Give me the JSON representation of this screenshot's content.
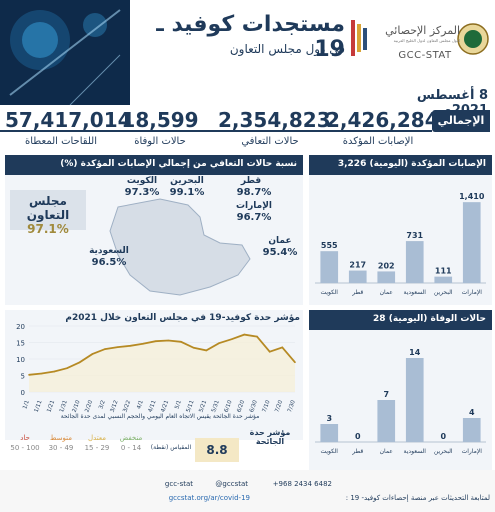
{
  "header": {
    "title": "مستجدات كوفيد ـ 19",
    "subtitle": "في دول مجلس التعاون",
    "org_name_ar": "المركز الإحصائي",
    "org_sub_ar": "لدول مجلس التعاون لدول الخليج العربية",
    "org_name_en": "GCC-STAT"
  },
  "date": "8 أغسطس 2021م",
  "totals": {
    "label": "الإجمالي",
    "items": [
      {
        "value": "2,426,284",
        "label": "الإصابات المؤكدة"
      },
      {
        "value": "2,354,823",
        "label": "حالات التعافي"
      },
      {
        "value": "18,599",
        "label": "حالات الوفاة"
      },
      {
        "value": "57,417,014",
        "label": "اللقاحات المعطاة"
      }
    ]
  },
  "map_panel": {
    "title": "نسبة حالات التعافي من إجمالي الإصابات المؤكدة (%)",
    "gcc_label": "مجلس التعاون",
    "gcc_value": "97.1%",
    "countries": [
      {
        "name": "الكويت",
        "value": "97.3%"
      },
      {
        "name": "البحرين",
        "value": "99.1%"
      },
      {
        "name": "قطر",
        "value": "98.7%"
      },
      {
        "name": "الإمارات",
        "value": "96.7%"
      },
      {
        "name": "عمان",
        "value": "95.4%"
      },
      {
        "name": "السعودية",
        "value": "96.5%"
      }
    ]
  },
  "cases_panel": {
    "title": "الإصابات المؤكدة (اليومية) 3,226",
    "chart_data": {
      "type": "bar",
      "categories": [
        "الكويت",
        "قطر",
        "عمان",
        "السعودية",
        "البحرين",
        "الإمارات"
      ],
      "values": [
        555,
        217,
        202,
        731,
        111,
        1410
      ],
      "value_labels": [
        "555",
        "217",
        "202",
        "731",
        "111",
        "1,410"
      ],
      "color": "#a9bdd4",
      "ylim": [
        0,
        1500
      ]
    }
  },
  "deaths_panel": {
    "title": "حالات الوفاة (اليومية) 28",
    "chart_data": {
      "type": "bar",
      "categories": [
        "الكويت",
        "قطر",
        "عمان",
        "السعودية",
        "البحرين",
        "الإمارات"
      ],
      "values": [
        3,
        0,
        7,
        14,
        0,
        4
      ],
      "value_labels": [
        "3",
        "0",
        "7",
        "14",
        "0",
        "4"
      ],
      "color": "#a9bdd4",
      "ylim": [
        0,
        15
      ]
    }
  },
  "trend_panel": {
    "title": "مؤشر حدة كوفيد-19 في مجلس التعاون خلال 2021م",
    "note": "مؤشر حدة الجائحة يقيس الاتجاه العام اليومي والحجم النسبي لمدى حدة الجائحة",
    "chart_data": {
      "type": "line",
      "x": [
        "1/1",
        "1/11",
        "1/21",
        "1/31",
        "2/10",
        "2/20",
        "3/2",
        "3/12",
        "3/22",
        "4/1",
        "4/11",
        "4/21",
        "5/1",
        "5/11",
        "5/21",
        "5/31",
        "6/10",
        "6/20",
        "6/30",
        "7/10",
        "7/20",
        "7/30"
      ],
      "values": [
        5.2,
        5.6,
        6.2,
        7.2,
        9.0,
        11.5,
        13.0,
        13.6,
        14.0,
        14.6,
        15.4,
        15.6,
        15.2,
        13.4,
        12.6,
        14.8,
        16.0,
        17.4,
        16.8,
        12.2,
        13.5,
        9.0
      ],
      "ylim": [
        0,
        20
      ],
      "yticks": [
        "0",
        "5",
        "10",
        "15",
        "20"
      ],
      "color": "#b68a24"
    },
    "index_label": "مؤشر حدة الجائحة",
    "index_value": "8.8",
    "scale_label": "المقياس (نقطة)",
    "scale": [
      {
        "label": "منخفض",
        "range": "0 - 14"
      },
      {
        "label": "معتدل",
        "range": "15 - 29"
      },
      {
        "label": "متوسط",
        "range": "30 - 49"
      },
      {
        "label": "حاد",
        "range": "50 - 100"
      }
    ]
  },
  "footer": {
    "social": "gcc-stat",
    "twitter": "@gccstat",
    "phone": "+968 2434 6482",
    "link_text": "لمتابعة التحديثات عبر منصة إحصاءات كوفيد- 19 :",
    "url": "gccstat.org/ar/covid-19"
  }
}
